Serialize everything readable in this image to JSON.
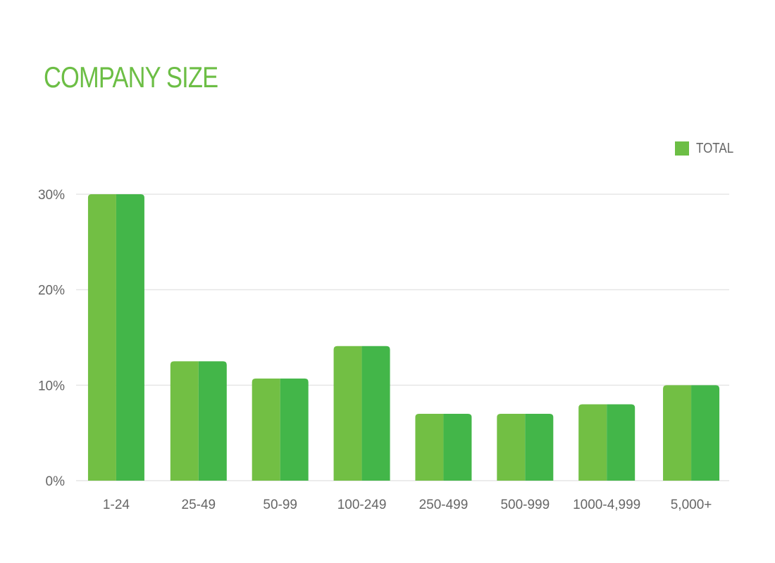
{
  "title": "COMPANY SIZE",
  "colors": {
    "title": "#6cbe45",
    "bar_left": "#72bf44",
    "bar_right": "#43b649",
    "grid": "#e6e6e6",
    "text": "#666666"
  },
  "legend": {
    "label": "TOTAL",
    "color": "#6cbe45",
    "placement": "top-right"
  },
  "chart_data": {
    "type": "bar",
    "title": "COMPANY SIZE",
    "xlabel": "",
    "ylabel": "",
    "categories": [
      "1-24",
      "25-49",
      "50-99",
      "100-249",
      "250-499",
      "500-999",
      "1000-4,999",
      "5,000+"
    ],
    "series": [
      {
        "name": "TOTAL",
        "values": [
          30,
          12.5,
          10.7,
          14.1,
          7,
          7,
          8,
          10
        ]
      }
    ],
    "ylim": [
      0,
      30
    ],
    "yticks": [
      0,
      10,
      20,
      30
    ],
    "ytick_labels": [
      "0%",
      "10%",
      "20%",
      "30%"
    ],
    "grid": true
  }
}
